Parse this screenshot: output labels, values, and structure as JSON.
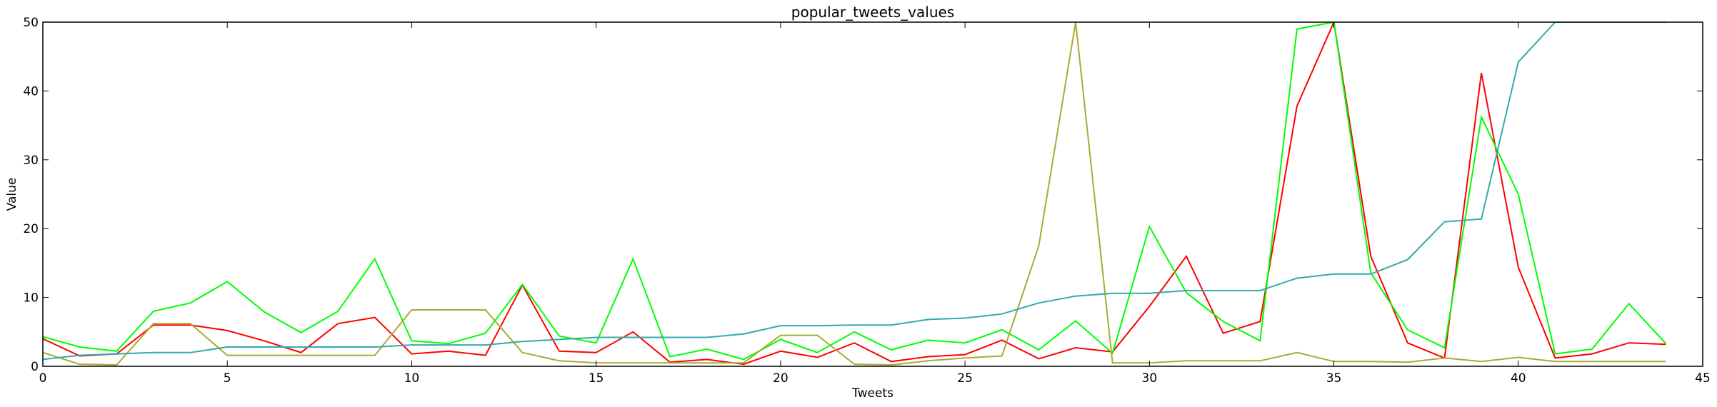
{
  "chart_data": {
    "type": "line",
    "title": "popular_tweets_values",
    "xlabel": "Tweets",
    "ylabel": "Value",
    "xlim": [
      0,
      45
    ],
    "ylim": [
      0,
      50
    ],
    "xticks": [
      0,
      5,
      10,
      15,
      20,
      25,
      30,
      35,
      40,
      45
    ],
    "yticks": [
      0,
      10,
      20,
      30,
      40,
      50
    ],
    "grid": false,
    "legend": "none",
    "x": [
      0,
      1,
      2,
      3,
      4,
      5,
      6,
      7,
      8,
      9,
      10,
      11,
      12,
      13,
      14,
      15,
      16,
      17,
      18,
      19,
      20,
      21,
      22,
      23,
      24,
      25,
      26,
      27,
      28,
      29,
      30,
      31,
      32,
      33,
      34,
      35,
      36,
      37,
      38,
      39,
      40,
      41,
      42,
      43,
      44
    ],
    "series": [
      {
        "color": "#ff0000",
        "values": [
          4,
          1.5,
          1.8,
          6,
          6,
          5.2,
          3.7,
          2,
          6.2,
          7.1,
          1.8,
          2.2,
          1.6,
          11.8,
          2.2,
          2,
          5,
          0.6,
          1,
          0.3,
          2.2,
          1.3,
          3.4,
          0.7,
          1.4,
          1.7,
          3.8,
          1.1,
          2.7,
          2.1,
          8.7,
          16,
          4.8,
          6.5,
          37.8,
          50,
          16,
          3.4,
          1.2,
          42.6,
          14.4,
          1.2,
          1.8,
          3.4,
          3.2
        ]
      },
      {
        "color": "#00ff00",
        "values": [
          4.3,
          2.8,
          2.2,
          8,
          9.2,
          12.3,
          7.9,
          4.9,
          8,
          15.6,
          3.7,
          3.3,
          4.8,
          11.9,
          4.4,
          3.4,
          15.6,
          1.4,
          2.5,
          1,
          3.9,
          2,
          5,
          2.4,
          3.8,
          3.4,
          5.3,
          2.4,
          6.6,
          1.9,
          20.3,
          10.7,
          6.5,
          3.7,
          49,
          50,
          13.6,
          5.3,
          2.7,
          36.2,
          25,
          1.8,
          2.5,
          9.1,
          3.3
        ]
      },
      {
        "color": "#aaaa33",
        "values": [
          2,
          0.3,
          0.2,
          6.2,
          6.2,
          1.6,
          1.6,
          1.6,
          1.6,
          1.6,
          8.2,
          8.2,
          8.2,
          2,
          0.8,
          0.5,
          0.5,
          0.5,
          0.5,
          0.5,
          4.5,
          4.5,
          0.3,
          0.2,
          0.8,
          1.2,
          1.5,
          17.5,
          50,
          0.5,
          0.5,
          0.8,
          0.8,
          0.8,
          2,
          0.7,
          0.7,
          0.6,
          1.2,
          0.7,
          1.3,
          0.7,
          0.7,
          0.7,
          0.7
        ]
      },
      {
        "color": "#33aaaa",
        "values": [
          1,
          1.6,
          1.8,
          2,
          2,
          2.8,
          2.8,
          2.8,
          2.8,
          2.8,
          3.1,
          3.1,
          3.1,
          3.6,
          3.9,
          4.2,
          4.2,
          4.2,
          4.2,
          4.7,
          5.9,
          5.9,
          6,
          6,
          6.8,
          7,
          7.6,
          9.2,
          10.2,
          10.6,
          10.6,
          11,
          11,
          11,
          12.8,
          13.4,
          13.4,
          15.5,
          21,
          21.4,
          44.2,
          50,
          50,
          50,
          50
        ]
      }
    ]
  }
}
